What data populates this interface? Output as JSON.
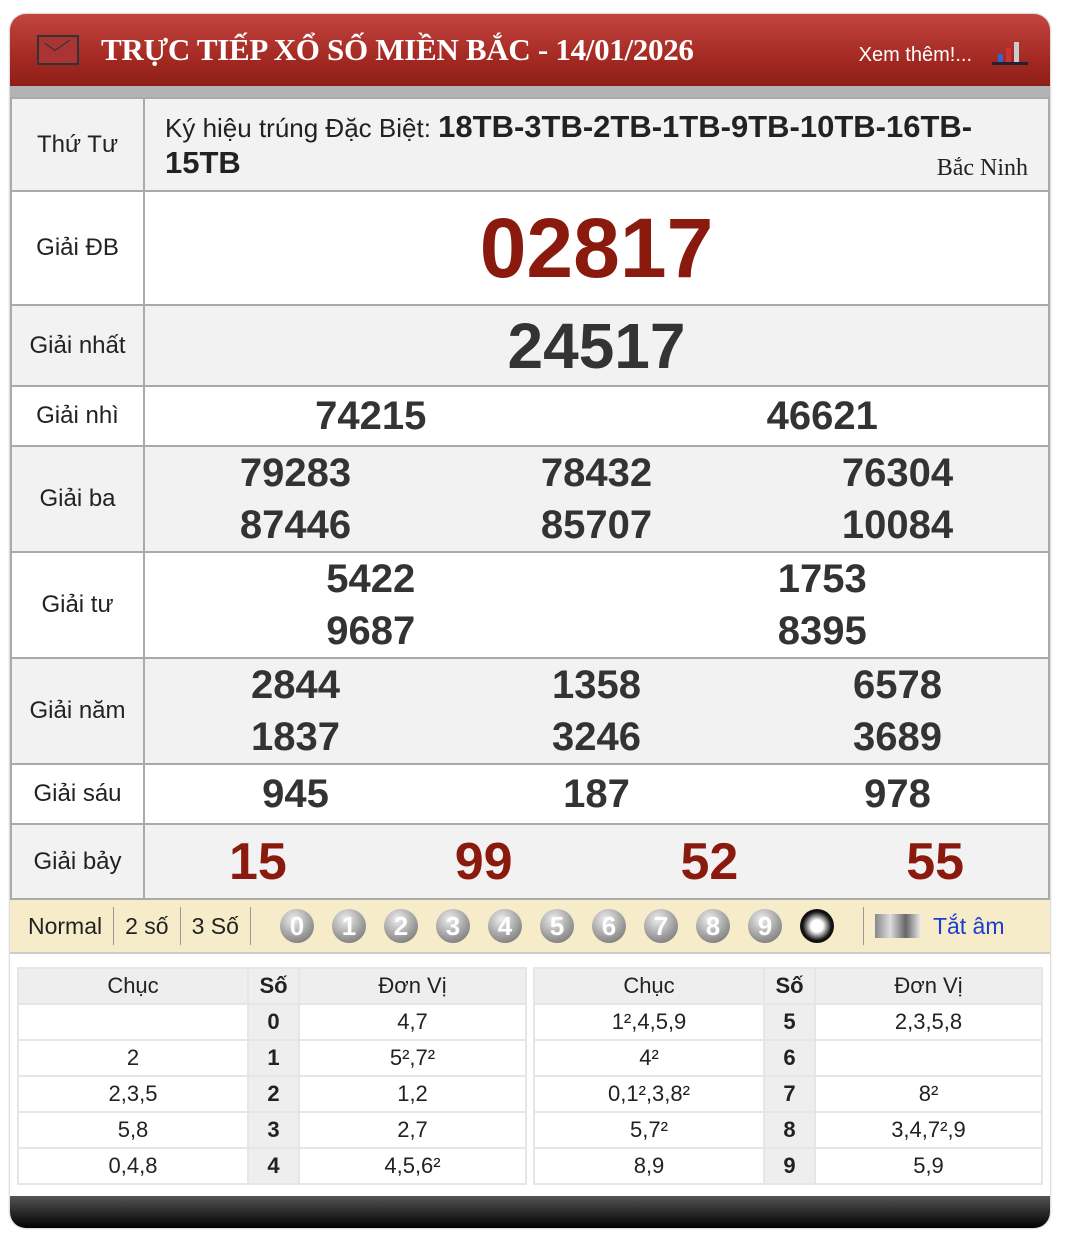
{
  "header": {
    "title": "TRỰC TIẾP XỔ SỐ MIỀN BẮC - 14/01/2026",
    "more_link": "Xem thêm!...",
    "icons": [
      "mail-icon",
      "bar-chart-icon"
    ]
  },
  "info": {
    "day": "Thứ Tư",
    "kyhieu_label": "Ký hiệu trúng Đặc Biệt:",
    "kyhieu_value": "18TB-3TB-2TB-1TB-9TB-10TB-16TB-15TB",
    "province": "Bắc Ninh"
  },
  "prizes": [
    {
      "label": "Giải ĐB",
      "numbers": [
        "02817"
      ]
    },
    {
      "label": "Giải nhất",
      "numbers": [
        "24517"
      ]
    },
    {
      "label": "Giải nhì",
      "numbers": [
        "74215",
        "46621"
      ]
    },
    {
      "label": "Giải ba",
      "numbers": [
        "79283",
        "78432",
        "76304",
        "87446",
        "85707",
        "10084"
      ]
    },
    {
      "label": "Giải tư",
      "numbers": [
        "5422",
        "1753",
        "9687",
        "8395"
      ]
    },
    {
      "label": "Giải năm",
      "numbers": [
        "2844",
        "1358",
        "6578",
        "1837",
        "3246",
        "3689"
      ]
    },
    {
      "label": "Giải sáu",
      "numbers": [
        "945",
        "187",
        "978"
      ]
    },
    {
      "label": "Giải bảy",
      "numbers": [
        "15",
        "99",
        "52",
        "55"
      ]
    }
  ],
  "toolbar": {
    "modes": [
      "Normal",
      "2 số",
      "3 Số"
    ],
    "digits": [
      "0",
      "1",
      "2",
      "3",
      "4",
      "5",
      "6",
      "7",
      "8",
      "9"
    ],
    "sound_label": "Tắt âm"
  },
  "loto": {
    "headers": [
      "Chục",
      "Số",
      "Đơn Vị"
    ],
    "rows": [
      {
        "chuc": "",
        "so": "0",
        "donvi": "4,7"
      },
      {
        "chuc": "2",
        "so": "1",
        "donvi": "5²,7²"
      },
      {
        "chuc": "2,3,5",
        "so": "2",
        "donvi": "1,2"
      },
      {
        "chuc": "5,8",
        "so": "3",
        "donvi": "2,7"
      },
      {
        "chuc": "0,4,8",
        "so": "4",
        "donvi": "4,5,6²"
      },
      {
        "chuc": "1²,4,5,9",
        "so": "5",
        "donvi": "2,3,5,8"
      },
      {
        "chuc": "4²",
        "so": "6",
        "donvi": ""
      },
      {
        "chuc": "0,1²,3,8²",
        "so": "7",
        "donvi": "8²"
      },
      {
        "chuc": "5,7²",
        "so": "8",
        "donvi": "3,4,7²,9"
      },
      {
        "chuc": "8,9",
        "so": "9",
        "donvi": "5,9"
      }
    ]
  },
  "colors": {
    "header_red": "#a52a23",
    "special_prize": "#8b1a0e",
    "toolbar_bg": "#f6ecc9",
    "link": "#1a3fcf"
  }
}
